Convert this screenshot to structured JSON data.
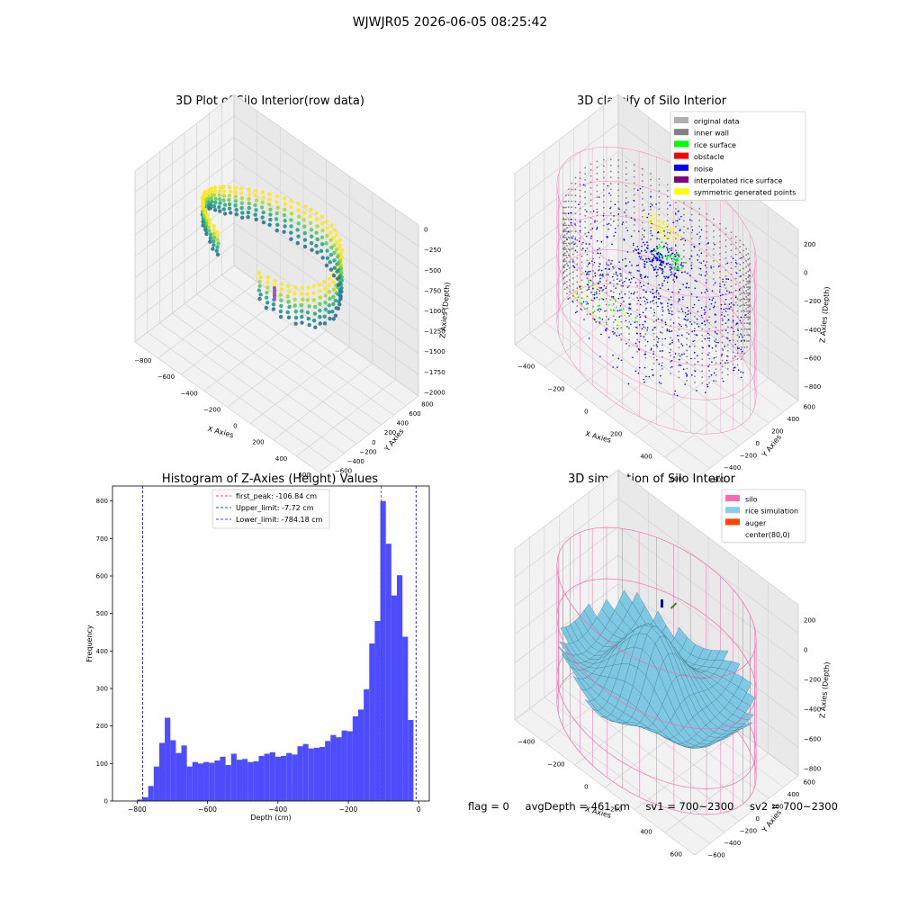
{
  "figure_title": "WJWJR05 2026-06-05 08:25:42",
  "footer": {
    "flag": "flag = 0",
    "avg_depth": "avgDepth = 461 cm",
    "sv1": "sv1 = 700~2300",
    "sv2": "sv2 = 700~2300"
  },
  "colors": {
    "hist_bar": "#4d4dff",
    "first_peak": "#e31a1c",
    "limit_lines": "#0000cc",
    "silo_wire": "#f06fb0",
    "rice_surface": "#7ec8e3",
    "noise": "#0000ff",
    "inner_wall": "#808080",
    "rice_points": "#00ff00",
    "symmetric_points": "#ffff00",
    "interpolated": "#800080",
    "obstacle": "#ff0000",
    "original": "#b0b0b0",
    "auger": "#ff4500"
  },
  "chart_data": [
    {
      "type": "scatter",
      "title": "3D Plot of Silo Interior(row data)",
      "xlabel": "X Axies",
      "ylabel": "Y Axies",
      "zlabel": "Z Axies (Depth)",
      "x_ticks": [
        -800,
        -600,
        -400,
        -200,
        0,
        200,
        400,
        600
      ],
      "y_ticks": [
        -600,
        -400,
        -200,
        0,
        200,
        400,
        600,
        800
      ],
      "z_ticks": [
        0,
        -250,
        -500,
        -750,
        -1000,
        -1250,
        -1500,
        -1750,
        -2000
      ],
      "xlim": [
        -900,
        700
      ],
      "ylim": [
        -700,
        900
      ],
      "zlim": [
        -2050,
        50
      ]
    },
    {
      "type": "scatter",
      "title": "3D classify of Silo Interior",
      "xlabel": "X Axies",
      "ylabel": "Y Axies",
      "zlabel": "Z Axies (Depth)",
      "x_ticks": [
        -400,
        -200,
        0,
        200,
        400,
        600
      ],
      "y_ticks": [
        -600,
        -400,
        -200,
        0,
        200,
        400,
        600
      ],
      "z_ticks": [
        200,
        0,
        -200,
        -400,
        -600,
        -800
      ],
      "xlim": [
        -500,
        700
      ],
      "ylim": [
        -650,
        650
      ],
      "zlim": [
        -900,
        300
      ],
      "legend": [
        {
          "label": "original data",
          "color": "#b0b0b0"
        },
        {
          "label": "inner wall",
          "color": "#808080"
        },
        {
          "label": "rice surface",
          "color": "#00ff00"
        },
        {
          "label": "obstacle",
          "color": "#ff0000"
        },
        {
          "label": "noise",
          "color": "#0000ff"
        },
        {
          "label": "interpolated rice surface",
          "color": "#800080"
        },
        {
          "label": "symmetric generated points",
          "color": "#ffff00"
        }
      ],
      "legend_loc": "upper right",
      "extra_ztick": "00"
    },
    {
      "type": "bar",
      "title": "Histogram of Z-Axies (Height) Values",
      "xlabel": "Depth (cm)",
      "ylabel": "Frequency",
      "xlim": [
        -870,
        30
      ],
      "ylim": [
        0,
        840
      ],
      "x_ticks": [
        -800,
        -600,
        -400,
        -200,
        0
      ],
      "y_ticks": [
        0,
        100,
        200,
        300,
        400,
        500,
        600,
        700,
        800
      ],
      "bin_start": -800,
      "bin_width": 15.7,
      "values": [
        4,
        10,
        40,
        92,
        155,
        222,
        162,
        128,
        148,
        92,
        104,
        100,
        104,
        102,
        108,
        118,
        96,
        126,
        110,
        112,
        104,
        106,
        120,
        126,
        130,
        118,
        120,
        128,
        124,
        146,
        152,
        140,
        142,
        144,
        160,
        176,
        170,
        188,
        186,
        226,
        244,
        298,
        420,
        480,
        800,
        686,
        548,
        602,
        438,
        216
      ],
      "lines": [
        {
          "name": "first_peak: -106.84 cm",
          "x": -106.84,
          "color": "#e31a1c"
        },
        {
          "name": "Upper_limit: -7.72 cm",
          "x": -7.72,
          "color": "#0000cc"
        },
        {
          "name": "Lower_limit: -784.18 cm",
          "x": -784.18,
          "color": "#0000cc"
        }
      ],
      "legend_loc": "upper center",
      "grid": false
    },
    {
      "type": "area",
      "title": "3D simulation of Silo Interior",
      "xlabel": "X Axies",
      "ylabel": "Y Axies",
      "zlabel": "Z Axies (Depth)",
      "x_ticks": [
        -400,
        -200,
        0,
        200,
        400,
        600
      ],
      "y_ticks": [
        -600,
        -400,
        -200,
        0,
        200,
        400,
        600
      ],
      "z_ticks": [
        200,
        0,
        -200,
        -400,
        -600,
        -800
      ],
      "xlim": [
        -500,
        700
      ],
      "ylim": [
        -650,
        650
      ],
      "zlim": [
        -850,
        300
      ],
      "legend": [
        {
          "label": "silo",
          "color": "#ff69b4"
        },
        {
          "label": "rice simulation",
          "color": "#87ceeb"
        },
        {
          "label": "auger",
          "color": "#ff4500"
        },
        {
          "label": "center(80,0)",
          "color": ""
        }
      ],
      "legend_loc": "upper right"
    }
  ]
}
